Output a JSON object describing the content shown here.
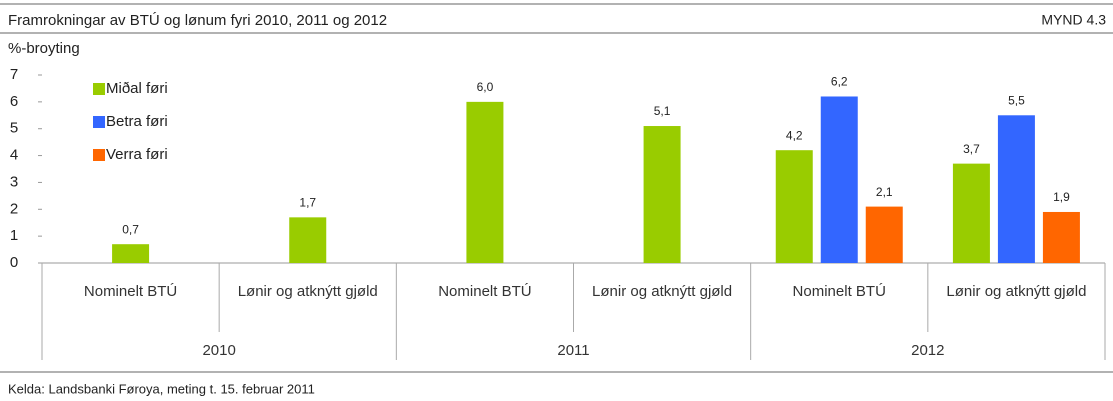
{
  "chart_data": {
    "type": "bar",
    "title": "Framrokningar av BTÚ og lønum fyri 2010, 2011 og 2012",
    "figure_label": "MYND 4.3",
    "y_label": "%-broyting",
    "source": "Kelda: Landsbanki Føroya, meting t. 15. februar 2011",
    "categories": [
      "Nominelt BTÚ",
      "Lønir og atknýtt gjøld",
      "Nominelt BTÚ",
      "Lønir og atknýtt gjøld",
      "Nominelt BTÚ",
      "Lønir og atknýtt gjøld"
    ],
    "groups": [
      "2010",
      "2011",
      "2012"
    ],
    "series": [
      {
        "name": "Miðal føri",
        "color": "#99cc00",
        "values": [
          0.7,
          1.7,
          6.0,
          5.1,
          4.2,
          3.7
        ],
        "value_labels": [
          "0,7",
          "1,7",
          "6,0",
          "5,1",
          "4,2",
          "3,7"
        ]
      },
      {
        "name": "Betra føri",
        "color": "#3366ff",
        "values": [
          null,
          null,
          null,
          null,
          6.2,
          5.5
        ],
        "value_labels": [
          null,
          null,
          null,
          null,
          "6,2",
          "5,5"
        ]
      },
      {
        "name": "Verra føri",
        "color": "#ff6600",
        "values": [
          null,
          null,
          null,
          null,
          2.1,
          1.9
        ],
        "value_labels": [
          null,
          null,
          null,
          null,
          "2,1",
          "1,9"
        ]
      }
    ],
    "ylim": [
      0,
      7
    ],
    "yticks": [
      0,
      1,
      2,
      3,
      4,
      5,
      6,
      7
    ],
    "grid": false,
    "legend": "top-left"
  }
}
